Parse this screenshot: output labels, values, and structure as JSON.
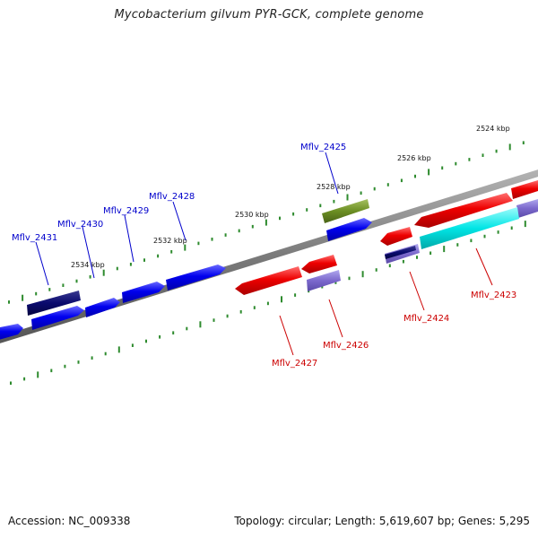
{
  "title": "Mycobacterium gilvum PYR-GCK, complete genome",
  "footer": {
    "accession": "Accession: NC_009338",
    "summary": "Topology: circular; Length: 5,619,607 bp; Genes: 5,295"
  },
  "ticks": [
    {
      "label": "2524 kbp",
      "color": "#111111"
    },
    {
      "label": "2526 kbp",
      "color": "#111111"
    },
    {
      "label": "2528 kbp",
      "color": "#111111"
    },
    {
      "label": "2530 kbp",
      "color": "#111111"
    },
    {
      "label": "2532 kbp",
      "color": "#111111"
    },
    {
      "label": "2534 kbp",
      "color": "#111111"
    }
  ],
  "gene_labels": [
    {
      "text": "Mflv_2425",
      "color": "#0000cc"
    },
    {
      "text": "Mflv_2428",
      "color": "#0000cc"
    },
    {
      "text": "Mflv_2429",
      "color": "#0000cc"
    },
    {
      "text": "Mflv_2430",
      "color": "#0000cc"
    },
    {
      "text": "Mflv_2431",
      "color": "#0000cc"
    },
    {
      "text": "Mflv_2423",
      "color": "#cc0000"
    },
    {
      "text": "Mflv_2424",
      "color": "#cc0000"
    },
    {
      "text": "Mflv_2426",
      "color": "#cc0000"
    },
    {
      "text": "Mflv_2427",
      "color": "#cc0000"
    }
  ],
  "colors": {
    "backbone": "#7a7a7a",
    "tick_marks": "#2e8b2e",
    "forward_gene": "#0000ee",
    "forward_gene_dark": "#0a0a6e",
    "reverse_gene": "#ee0000",
    "olive_gene": "#6b8e23",
    "slate_gene": "#7b68cc",
    "cyan_gene": "#00e5e5"
  }
}
